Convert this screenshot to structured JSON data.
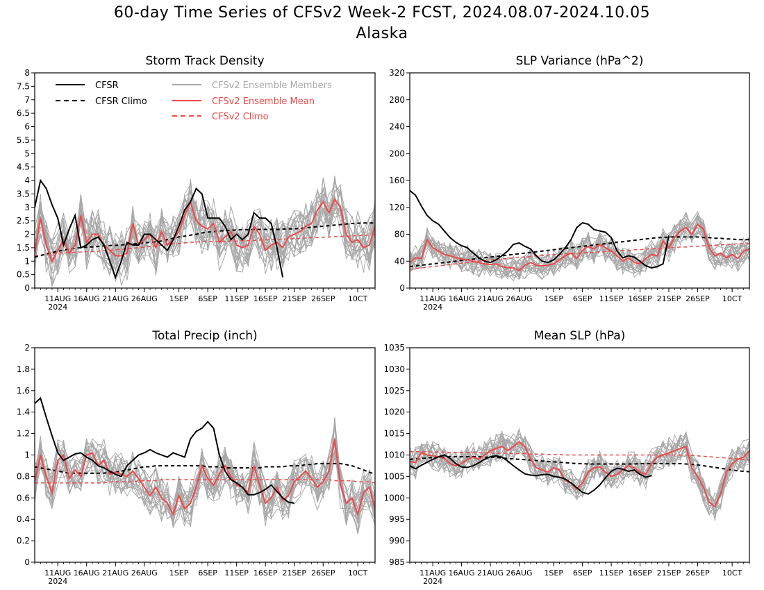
{
  "page": {
    "title_line1": "60-day Time Series of CFSv2 Week-2 FCST, 2024.08.07-2024.10.05",
    "title_line2": "Alaska"
  },
  "colors": {
    "cfsr": "#000000",
    "cfsr_climo": "#000000",
    "members": "#a8a8a8",
    "ens_mean": "#f04848",
    "cfsv2_climo": "#f04848"
  },
  "legend": [
    {
      "label": "CFSR",
      "color": "#000000",
      "style": "solid"
    },
    {
      "label": "CFSR Climo",
      "color": "#000000",
      "style": "dashed"
    },
    {
      "label": "CFSv2 Ensemble Members",
      "color": "#a8a8a8",
      "style": "solid"
    },
    {
      "label": "CFSv2 Ensemble Mean",
      "color": "#f04848",
      "style": "solid"
    },
    {
      "label": "CFSv2 Climo",
      "color": "#f04848",
      "style": "dashed"
    }
  ],
  "x_axis": {
    "start_date": "2024-08-07",
    "n_days": 60,
    "ticks": [
      {
        "day": 4,
        "label": "11AUG"
      },
      {
        "day": 9,
        "label": "16AUG"
      },
      {
        "day": 14,
        "label": "21AUG"
      },
      {
        "day": 19,
        "label": "26AUG"
      },
      {
        "day": 25,
        "label": "1SEP"
      },
      {
        "day": 30,
        "label": "6SEP"
      },
      {
        "day": 35,
        "label": "11SEP"
      },
      {
        "day": 40,
        "label": "16SEP"
      },
      {
        "day": 45,
        "label": "21SEP"
      },
      {
        "day": 50,
        "label": "26SEP"
      },
      {
        "day": 56,
        "label": "10CT"
      }
    ],
    "year_label": "2024"
  },
  "chart_data": [
    {
      "type": "line",
      "title": "Storm Track Density",
      "ylim": [
        0,
        8
      ],
      "yticks": [
        "0",
        "0.5",
        "1",
        "1.5",
        "2",
        "2.5",
        "3",
        "3.5",
        "4",
        "4.5",
        "5",
        "5.5",
        "6",
        "6.5",
        "7",
        "7.5",
        "8"
      ],
      "ytick_values": [
        0,
        0.5,
        1,
        1.5,
        2,
        2.5,
        3,
        3.5,
        4,
        4.5,
        5,
        5.5,
        6,
        6.5,
        7,
        7.5,
        8
      ],
      "cfsr": [
        3.0,
        4.0,
        3.7,
        3.1,
        2.6,
        1.6,
        2.2,
        2.7,
        1.5,
        1.6,
        1.8,
        1.9,
        1.6,
        1.0,
        0.4,
        1.0,
        1.7,
        1.6,
        1.6,
        2.0,
        2.0,
        1.8,
        1.6,
        1.4,
        1.8,
        2.3,
        2.9,
        3.2,
        3.7,
        3.5,
        2.6,
        2.6,
        2.6,
        2.3,
        1.8,
        2.0,
        1.8,
        2.0,
        2.8,
        2.6,
        2.6,
        2.4,
        1.5,
        0.4
      ],
      "cfsr_climo": [
        1.15,
        1.2,
        1.27,
        1.32,
        1.37,
        1.41,
        1.45,
        1.48,
        1.5,
        1.52,
        1.53,
        1.55,
        1.57,
        1.58,
        1.59,
        1.6,
        1.62,
        1.64,
        1.66,
        1.68,
        1.7,
        1.72,
        1.75,
        1.8,
        1.85,
        1.9,
        1.93,
        1.97,
        2.0,
        2.05,
        2.08,
        2.1,
        2.12,
        2.14,
        2.15,
        2.16,
        2.17,
        2.17,
        2.18,
        2.18,
        2.18,
        2.18,
        2.18,
        2.19,
        2.2,
        2.2,
        2.22,
        2.24,
        2.26,
        2.28,
        2.3,
        2.32,
        2.34,
        2.36,
        2.38,
        2.4,
        2.41,
        2.42,
        2.42,
        2.42
      ],
      "ens_mean": [
        1.3,
        2.6,
        1.6,
        1.0,
        1.4,
        1.8,
        1.3,
        1.6,
        2.7,
        1.7,
        2.0,
        2.0,
        1.6,
        1.4,
        1.2,
        1.2,
        1.3,
        2.4,
        1.6,
        1.8,
        2.0,
        1.5,
        2.1,
        1.6,
        1.8,
        2.1,
        2.7,
        3.2,
        2.5,
        2.3,
        2.2,
        2.4,
        1.7,
        1.9,
        2.1,
        1.6,
        1.5,
        1.6,
        2.3,
        2.0,
        1.4,
        1.6,
        1.7,
        1.5,
        1.9,
        2.0,
        2.1,
        2.3,
        2.4,
        2.9,
        3.2,
        2.8,
        3.3,
        3.0,
        2.0,
        1.7,
        1.8,
        1.5,
        1.6,
        2.3
      ],
      "cfsv2_climo": [
        1.2,
        1.23,
        1.26,
        1.28,
        1.3,
        1.31,
        1.32,
        1.33,
        1.34,
        1.35,
        1.36,
        1.37,
        1.39,
        1.4,
        1.42,
        1.44,
        1.46,
        1.48,
        1.5,
        1.52,
        1.55,
        1.57,
        1.6,
        1.62,
        1.64,
        1.66,
        1.68,
        1.7,
        1.71,
        1.72,
        1.73,
        1.73,
        1.74,
        1.74,
        1.75,
        1.75,
        1.76,
        1.76,
        1.77,
        1.78,
        1.79,
        1.8,
        1.81,
        1.82,
        1.83,
        1.84,
        1.85,
        1.86,
        1.87,
        1.88,
        1.89,
        1.9,
        1.91,
        1.92,
        1.93,
        1.94,
        1.95,
        1.96,
        1.97,
        1.98
      ],
      "members_spread": 0.85,
      "members_count": 20
    },
    {
      "type": "line",
      "title": "SLP Variance (hPa^2)",
      "ylim": [
        0,
        320
      ],
      "yticks": [
        "0",
        "40",
        "80",
        "120",
        "160",
        "200",
        "240",
        "280",
        "320"
      ],
      "ytick_values": [
        0,
        40,
        80,
        120,
        160,
        200,
        240,
        280,
        320
      ],
      "cfsr": [
        145,
        138,
        122,
        108,
        100,
        95,
        85,
        75,
        68,
        63,
        60,
        52,
        45,
        40,
        38,
        42,
        48,
        55,
        65,
        67,
        62,
        58,
        48,
        40,
        38,
        42,
        50,
        60,
        72,
        90,
        97,
        95,
        87,
        85,
        83,
        75,
        55,
        45,
        48,
        46,
        40,
        33,
        30,
        32,
        36,
        78
      ],
      "cfsr_climo": [
        32,
        33,
        34,
        35,
        36,
        37,
        38,
        39,
        40,
        41,
        42,
        43,
        44,
        45,
        46,
        47,
        48,
        49,
        50,
        51,
        52,
        53,
        54,
        55,
        56,
        57,
        58,
        59,
        60,
        61,
        62,
        63,
        64,
        65,
        66,
        67,
        68,
        69,
        70,
        71,
        72,
        73,
        74,
        75,
        75,
        76,
        76,
        76,
        76,
        76,
        76,
        75,
        75,
        74,
        74,
        73,
        73,
        72,
        72,
        72
      ],
      "ens_mean": [
        38,
        45,
        44,
        72,
        60,
        55,
        50,
        48,
        45,
        43,
        42,
        40,
        38,
        36,
        35,
        36,
        32,
        30,
        30,
        26,
        34,
        38,
        34,
        33,
        34,
        36,
        42,
        48,
        52,
        44,
        56,
        62,
        58,
        65,
        60,
        55,
        48,
        40,
        45,
        38,
        36,
        44,
        50,
        48,
        70,
        60,
        75,
        85,
        90,
        80,
        95,
        88,
        60,
        48,
        52,
        45,
        50,
        44,
        55,
        58
      ],
      "cfsv2_climo": [
        28,
        29,
        30,
        31,
        32,
        33,
        34,
        35,
        36,
        37,
        38,
        39,
        40,
        41,
        42,
        43,
        43,
        44,
        45,
        46,
        46,
        47,
        48,
        48,
        49,
        50,
        50,
        51,
        51,
        52,
        52,
        53,
        53,
        54,
        54,
        55,
        55,
        56,
        56,
        57,
        57,
        58,
        58,
        59,
        59,
        60,
        60,
        61,
        61,
        62,
        62,
        63,
        63,
        64,
        64,
        65,
        65,
        66,
        66,
        66
      ],
      "members_spread": 18,
      "members_count": 20
    },
    {
      "type": "line",
      "title": "Total Precip (inch)",
      "ylim": [
        0,
        2
      ],
      "yticks": [
        "0",
        "0.2",
        "0.4",
        "0.6",
        "0.8",
        "1",
        "1.2",
        "1.4",
        "1.6",
        "1.8",
        "2"
      ],
      "ytick_values": [
        0,
        0.2,
        0.4,
        0.6,
        0.8,
        1,
        1.2,
        1.4,
        1.6,
        1.8,
        2
      ],
      "cfsr": [
        1.48,
        1.53,
        1.35,
        1.18,
        1.02,
        0.95,
        0.98,
        1.01,
        1.02,
        0.98,
        0.95,
        0.9,
        0.88,
        0.85,
        0.82,
        0.8,
        0.9,
        0.95,
        1.0,
        1.02,
        1.05,
        1.02,
        1.0,
        0.98,
        1.02,
        1.0,
        0.98,
        1.15,
        1.22,
        1.25,
        1.31,
        1.25,
        1.0,
        0.85,
        0.77,
        0.74,
        0.7,
        0.63,
        0.63,
        0.65,
        0.68,
        0.72,
        0.66,
        0.6,
        0.56,
        0.55
      ],
      "cfsr_climo": [
        0.89,
        0.88,
        0.87,
        0.86,
        0.85,
        0.84,
        0.83,
        0.83,
        0.83,
        0.83,
        0.83,
        0.83,
        0.83,
        0.84,
        0.84,
        0.85,
        0.86,
        0.87,
        0.88,
        0.89,
        0.89,
        0.9,
        0.9,
        0.9,
        0.9,
        0.9,
        0.9,
        0.9,
        0.9,
        0.9,
        0.89,
        0.89,
        0.89,
        0.88,
        0.88,
        0.88,
        0.88,
        0.88,
        0.88,
        0.88,
        0.89,
        0.89,
        0.89,
        0.89,
        0.9,
        0.9,
        0.9,
        0.91,
        0.91,
        0.92,
        0.92,
        0.92,
        0.92,
        0.92,
        0.91,
        0.9,
        0.88,
        0.86,
        0.84,
        0.82
      ],
      "ens_mean": [
        0.75,
        1.0,
        0.8,
        0.65,
        0.95,
        1.0,
        0.78,
        0.86,
        0.8,
        1.0,
        1.02,
        0.9,
        0.95,
        0.82,
        0.84,
        0.82,
        0.8,
        0.85,
        0.78,
        0.7,
        0.62,
        0.7,
        0.6,
        0.55,
        0.45,
        0.62,
        0.5,
        0.55,
        0.7,
        0.9,
        0.78,
        0.72,
        0.82,
        0.9,
        0.8,
        0.72,
        0.7,
        0.65,
        0.9,
        0.72,
        0.55,
        0.6,
        0.7,
        0.58,
        0.62,
        0.75,
        0.8,
        0.85,
        0.78,
        0.7,
        0.75,
        0.85,
        1.15,
        0.72,
        0.55,
        0.6,
        0.45,
        0.65,
        0.7,
        0.5
      ],
      "cfsv2_climo": [
        0.74,
        0.74,
        0.74,
        0.74,
        0.74,
        0.74,
        0.74,
        0.74,
        0.74,
        0.74,
        0.74,
        0.74,
        0.74,
        0.75,
        0.75,
        0.75,
        0.75,
        0.75,
        0.76,
        0.76,
        0.76,
        0.76,
        0.77,
        0.77,
        0.77,
        0.77,
        0.77,
        0.77,
        0.77,
        0.77,
        0.77,
        0.77,
        0.77,
        0.77,
        0.77,
        0.77,
        0.77,
        0.77,
        0.77,
        0.77,
        0.77,
        0.77,
        0.77,
        0.77,
        0.77,
        0.77,
        0.77,
        0.77,
        0.77,
        0.77,
        0.77,
        0.77,
        0.76,
        0.76,
        0.76,
        0.76,
        0.75,
        0.75,
        0.75,
        0.74
      ],
      "members_spread": 0.18,
      "members_count": 20
    },
    {
      "type": "line",
      "title": "Mean SLP (hPa)",
      "ylim": [
        985,
        1035
      ],
      "yticks": [
        "985",
        "990",
        "995",
        "1000",
        "1005",
        "1010",
        "1015",
        "1020",
        "1025",
        "1030",
        "1035"
      ],
      "ytick_values": [
        985,
        990,
        995,
        1000,
        1005,
        1010,
        1015,
        1020,
        1025,
        1030,
        1035
      ],
      "cfsr": [
        1007.5,
        1006.8,
        1007.6,
        1008.3,
        1009.0,
        1009.6,
        1010.0,
        1009.2,
        1008.0,
        1007.2,
        1007.1,
        1007.5,
        1008.2,
        1009.0,
        1009.6,
        1009.8,
        1009.5,
        1008.6,
        1007.5,
        1006.5,
        1005.6,
        1005.3,
        1005.2,
        1005.4,
        1005.5,
        1005.0,
        1004.8,
        1004.4,
        1003.5,
        1002.4,
        1001.3,
        1000.9,
        1001.8,
        1003.0,
        1004.7,
        1006.2,
        1006.9,
        1006.7,
        1006.2,
        1006.5,
        1005.5,
        1004.8,
        1005.2
      ],
      "cfsr_climo": [
        1009.0,
        1009.1,
        1009.2,
        1009.3,
        1009.4,
        1009.5,
        1009.5,
        1009.6,
        1009.6,
        1009.6,
        1009.6,
        1009.6,
        1009.6,
        1009.5,
        1009.5,
        1009.4,
        1009.3,
        1009.2,
        1009.1,
        1009.0,
        1008.9,
        1008.8,
        1008.7,
        1008.6,
        1008.5,
        1008.4,
        1008.3,
        1008.2,
        1008.1,
        1008.0,
        1008.0,
        1007.9,
        1007.9,
        1007.9,
        1007.9,
        1007.9,
        1007.9,
        1007.9,
        1007.9,
        1007.9,
        1008.0,
        1008.0,
        1008.0,
        1008.0,
        1008.0,
        1008.0,
        1008.0,
        1008.0,
        1007.9,
        1007.8,
        1007.7,
        1007.5,
        1007.3,
        1007.1,
        1006.9,
        1006.7,
        1006.5,
        1006.3,
        1006.2,
        1006.1
      ],
      "ens_mean": [
        1008.5,
        1008.2,
        1010.5,
        1010.0,
        1009.8,
        1009.5,
        1009.2,
        1008.0,
        1007.5,
        1008.0,
        1009.0,
        1009.5,
        1009.0,
        1010.0,
        1011.0,
        1011.5,
        1012.0,
        1011.0,
        1012.0,
        1013.0,
        1012.0,
        1009.0,
        1007.0,
        1006.5,
        1006.0,
        1007.0,
        1006.5,
        1004.0,
        1003.5,
        1002.0,
        1003.5,
        1006.0,
        1007.0,
        1007.2,
        1006.0,
        1005.0,
        1005.5,
        1006.5,
        1007.5,
        1007.0,
        1006.0,
        1005.5,
        1008.0,
        1009.5,
        1010.0,
        1010.5,
        1011.0,
        1011.5,
        1012.0,
        1007.0,
        1005.0,
        1002.5,
        999.0,
        998.0,
        1001.0,
        1006.0,
        1008.0,
        1009.0,
        1009.5,
        1011.0
      ],
      "cfsv2_climo": [
        1010.8,
        1010.8,
        1010.8,
        1010.7,
        1010.7,
        1010.7,
        1010.7,
        1010.6,
        1010.6,
        1010.6,
        1010.6,
        1010.5,
        1010.5,
        1010.5,
        1010.5,
        1010.4,
        1010.4,
        1010.4,
        1010.3,
        1010.3,
        1010.3,
        1010.2,
        1010.2,
        1010.2,
        1010.1,
        1010.1,
        1010.1,
        1010.0,
        1010.0,
        1010.0,
        1010.0,
        1010.0,
        1010.0,
        1010.0,
        1010.0,
        1010.0,
        1010.0,
        1010.0,
        1010.0,
        1010.0,
        1010.0,
        1010.0,
        1010.0,
        1010.0,
        1010.0,
        1010.0,
        1010.0,
        1010.0,
        1010.0,
        1009.9,
        1009.8,
        1009.7,
        1009.6,
        1009.5,
        1009.4,
        1009.3,
        1009.2,
        1009.1,
        1009.0,
        1008.9
      ],
      "members_spread": 3.0,
      "members_count": 20
    }
  ]
}
